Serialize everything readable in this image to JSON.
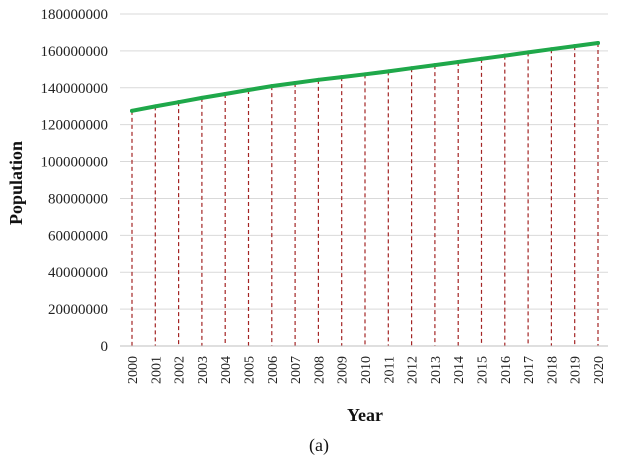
{
  "chart_data": {
    "type": "line",
    "title": "",
    "caption": "(a)",
    "xlabel": "Year",
    "ylabel": "Population",
    "x": [
      "2000",
      "2001",
      "2002",
      "2003",
      "2004",
      "2005",
      "2006",
      "2007",
      "2008",
      "2009",
      "2010",
      "2011",
      "2012",
      "2013",
      "2014",
      "2015",
      "2016",
      "2017",
      "2018",
      "2019",
      "2020"
    ],
    "series": [
      {
        "values": [
          127500000,
          129900000,
          132200000,
          134500000,
          136600000,
          138800000,
          140900000,
          142600000,
          144300000,
          145800000,
          147300000,
          148900000,
          150600000,
          152300000,
          154000000,
          155700000,
          157400000,
          159200000,
          160900000,
          162600000,
          164300000
        ],
        "color": "#1fa84a"
      }
    ],
    "drop_line_color": "#a32424",
    "ylim": [
      0,
      180000000
    ],
    "yticks": [
      "0",
      "20000000",
      "40000000",
      "60000000",
      "80000000",
      "100000000",
      "120000000",
      "140000000",
      "160000000",
      "180000000"
    ],
    "grid": "horizontal",
    "legend": "none"
  }
}
